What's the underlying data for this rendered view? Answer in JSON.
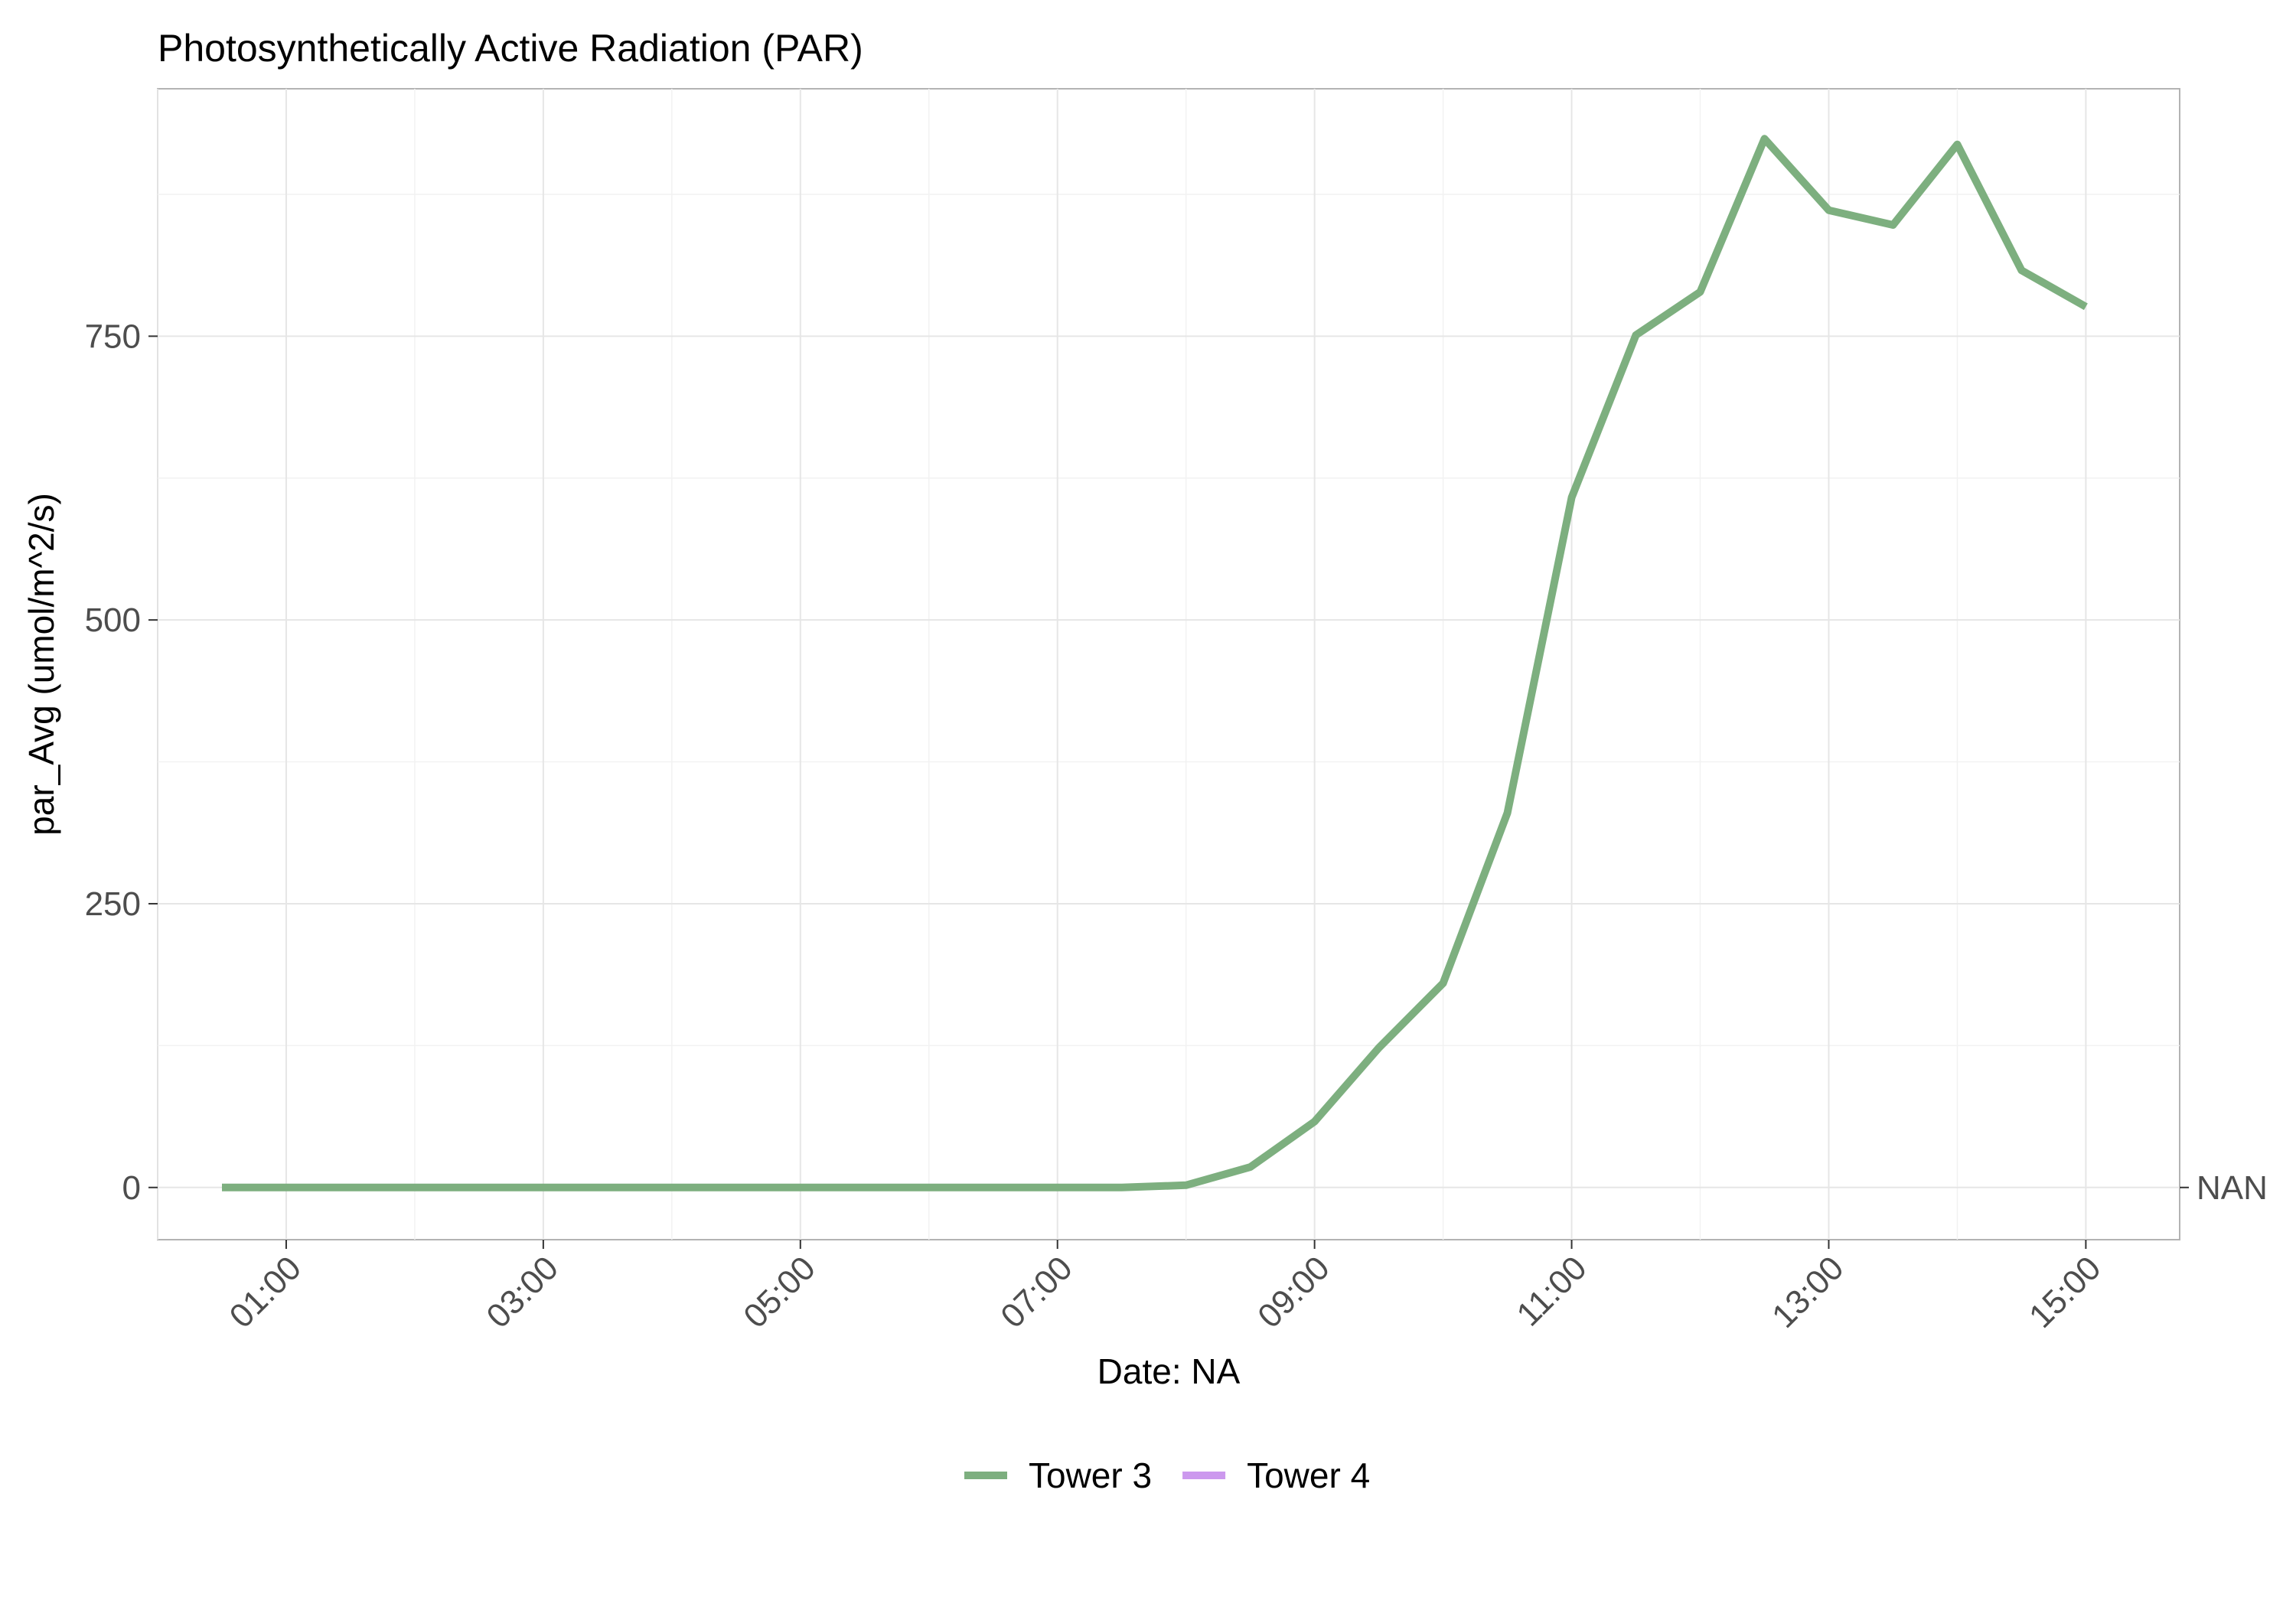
{
  "chart_data": {
    "type": "line",
    "title": "Photosynthetically Active Radiation (PAR)",
    "xlabel": "Date: NA",
    "ylabel": "par_Avg (umol/m^2/s)",
    "x_tick_labels": [
      "01:00",
      "03:00",
      "05:00",
      "07:00",
      "09:00",
      "11:00",
      "13:00",
      "15:00"
    ],
    "x_tick_hours": [
      1,
      3,
      5,
      7,
      9,
      11,
      13,
      15
    ],
    "xlim_hours": [
      0.0,
      15.73
    ],
    "y_tick_labels": [
      "0",
      "250",
      "500",
      "750"
    ],
    "y_tick_values": [
      0,
      250,
      500,
      750
    ],
    "ylim": [
      -46,
      968
    ],
    "right_axis_label": "NAN",
    "right_axis_value": 0,
    "grid": true,
    "legend_position": "bottom",
    "series": [
      {
        "name": "Tower 3",
        "color": "#7daf7f",
        "x_hours": [
          0.5,
          1,
          1.5,
          2,
          2.5,
          3,
          3.5,
          4,
          4.5,
          5,
          5.5,
          6,
          6.5,
          7,
          7.5,
          8,
          8.5,
          9,
          9.5,
          10,
          10.5,
          11,
          11.5,
          12,
          12.5,
          13,
          13.5,
          14,
          14.5,
          15
        ],
        "values": [
          0,
          0,
          0,
          0,
          0,
          0,
          0,
          0,
          0,
          0,
          0,
          0,
          0,
          0,
          0,
          2,
          18,
          58,
          123,
          180,
          330,
          608,
          751,
          789,
          924,
          861,
          848,
          919,
          808,
          776
        ]
      },
      {
        "name": "Tower 4",
        "color": "#cc99ee",
        "x_hours": [],
        "values": []
      }
    ]
  }
}
